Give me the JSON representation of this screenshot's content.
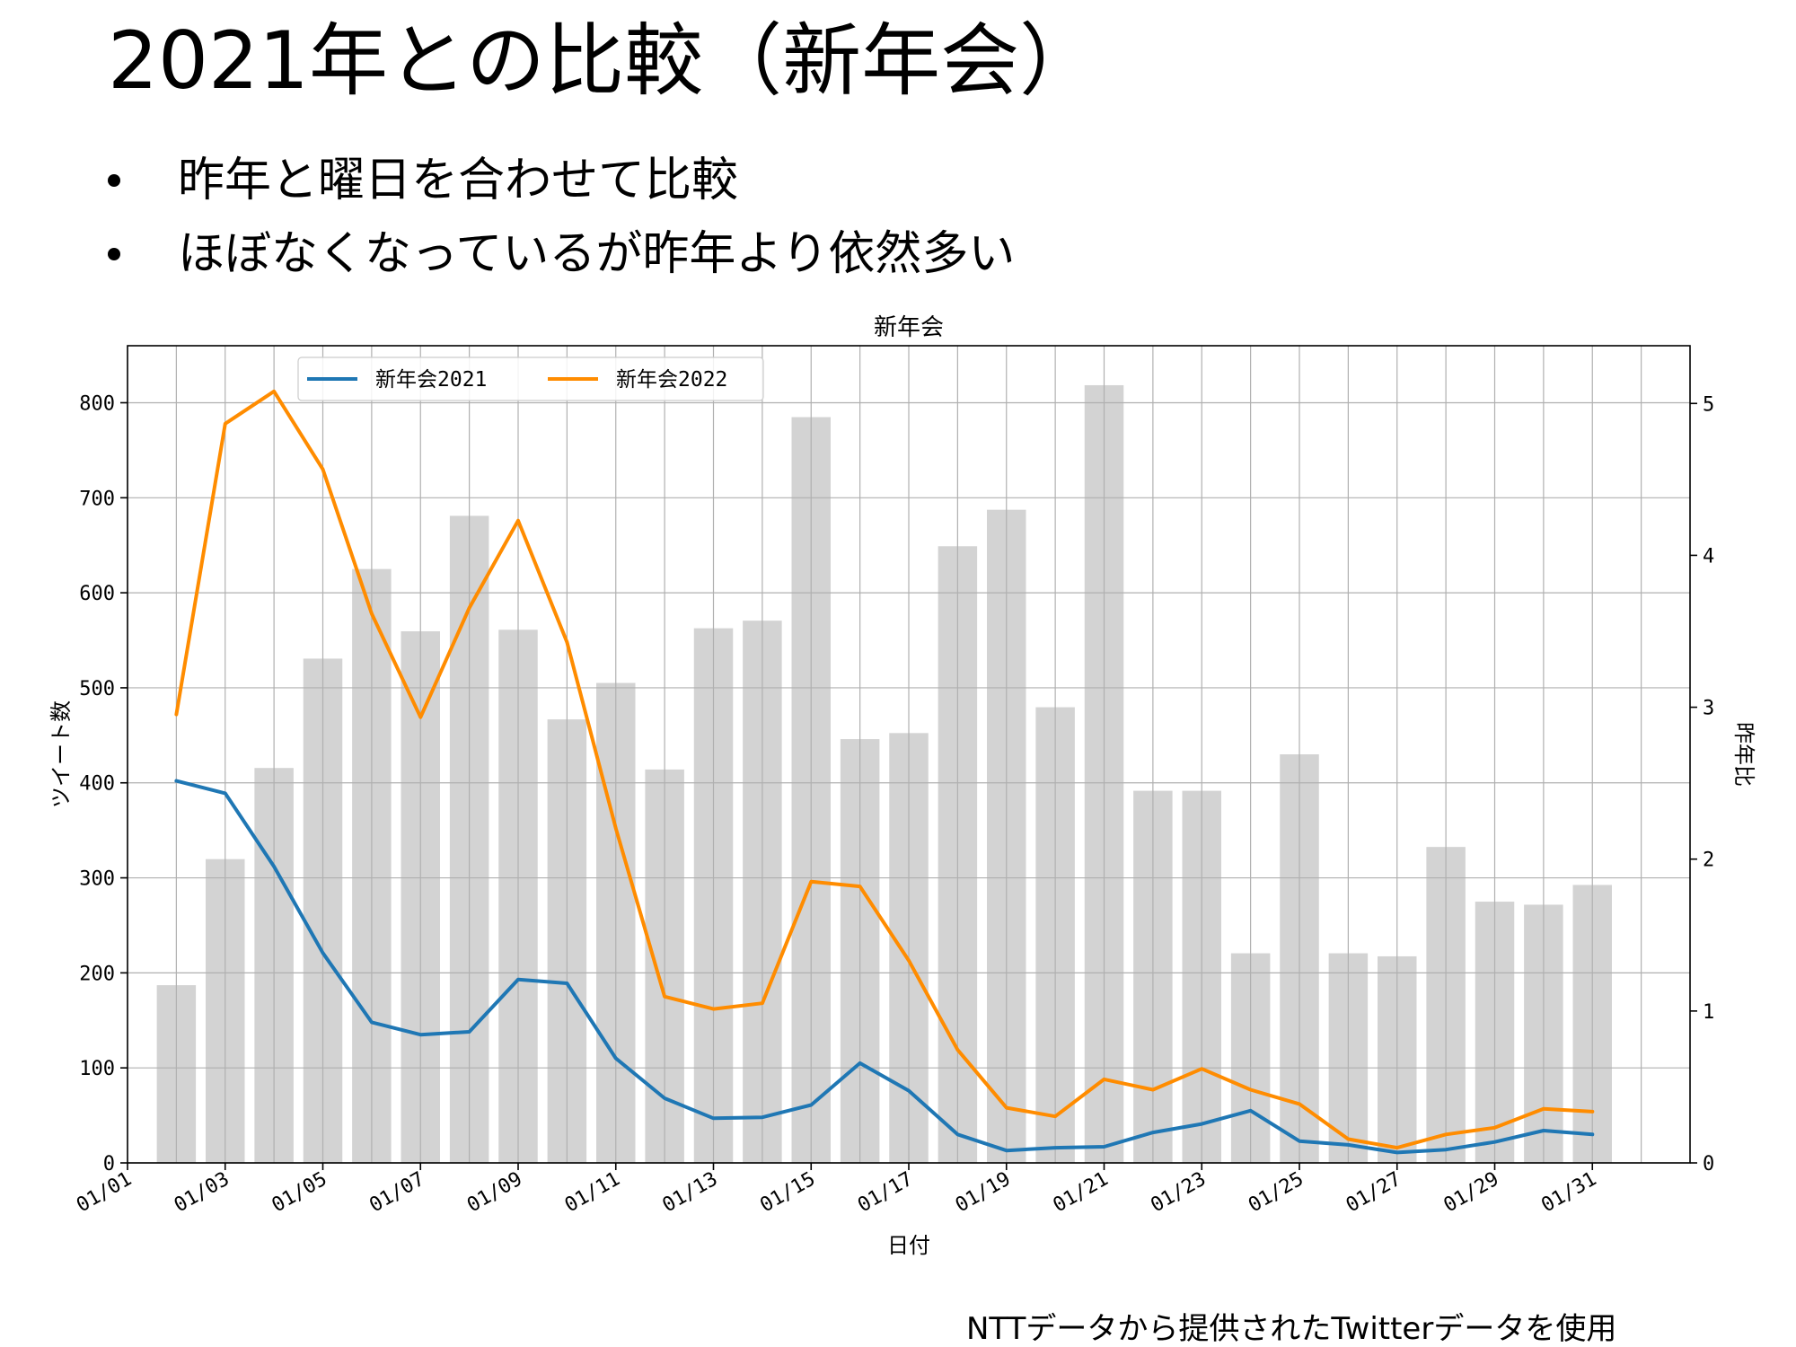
{
  "slide": {
    "title": "2021年との比較（新年会）",
    "bullets": [
      "昨年と曜日を合わせて比較",
      "ほぼなくなっているが昨年より依然多い"
    ],
    "source_note": "NTTデータから提供されたTwitterデータを使用"
  },
  "chart_data": {
    "type": "bar",
    "title": "新年会",
    "xlabel": "日付",
    "ylabel": "ツイート数",
    "y2label": "昨年比",
    "x_range": [
      "01/01",
      "02/02"
    ],
    "ylim": [
      0,
      860
    ],
    "y2lim": [
      0,
      5.38
    ],
    "yticks": [
      0,
      100,
      200,
      300,
      400,
      500,
      600,
      700,
      800
    ],
    "y2ticks": [
      0,
      1,
      2,
      3,
      4,
      5
    ],
    "x_grid_dates": [
      "01/01",
      "01/02",
      "01/03",
      "01/04",
      "01/05",
      "01/06",
      "01/07",
      "01/08",
      "01/09",
      "01/10",
      "01/11",
      "01/12",
      "01/13",
      "01/14",
      "01/15",
      "01/16",
      "01/17",
      "01/18",
      "01/19",
      "01/20",
      "01/21",
      "01/22",
      "01/23",
      "01/24",
      "01/25",
      "01/26",
      "01/27",
      "01/28",
      "01/29",
      "01/30",
      "01/31",
      "02/01"
    ],
    "x_tick_labels": [
      "01/01",
      "01/03",
      "01/05",
      "01/07",
      "01/09",
      "01/11",
      "01/13",
      "01/15",
      "01/17",
      "01/19",
      "01/21",
      "01/23",
      "01/25",
      "01/27",
      "01/29",
      "01/31"
    ],
    "grid": true,
    "legend_position": "top-left",
    "categories": [
      "01/02",
      "01/03",
      "01/04",
      "01/05",
      "01/06",
      "01/07",
      "01/08",
      "01/09",
      "01/10",
      "01/11",
      "01/12",
      "01/13",
      "01/14",
      "01/15",
      "01/16",
      "01/17",
      "01/18",
      "01/19",
      "01/20",
      "01/21",
      "01/22",
      "01/23",
      "01/24",
      "01/25",
      "01/26",
      "01/27",
      "01/28",
      "01/29",
      "01/30",
      "01/31"
    ],
    "bar_values": [
      1.17,
      2.0,
      2.6,
      3.32,
      3.91,
      3.5,
      4.26,
      3.51,
      2.92,
      3.16,
      2.59,
      3.52,
      3.57,
      4.91,
      2.79,
      2.83,
      4.06,
      4.3,
      3.0,
      5.12,
      2.45,
      2.45,
      1.38,
      2.69,
      1.38,
      1.36,
      2.08,
      1.72,
      1.7,
      1.83
    ],
    "bar_axis": "right",
    "bar_color": "#d3d3d3",
    "series": [
      {
        "name": "新年会2021",
        "color": "#1f77b4",
        "axis": "left",
        "values": [
          402,
          389,
          312,
          221,
          148,
          135,
          138,
          193,
          189,
          110,
          68,
          47,
          48,
          61,
          105,
          76,
          30,
          13,
          16,
          17,
          32,
          41,
          55,
          23,
          19,
          11,
          14,
          22,
          34,
          30
        ]
      },
      {
        "name": "新年会2022",
        "color": "#ff8c00",
        "axis": "left",
        "values": [
          472,
          778,
          812,
          730,
          578,
          469,
          584,
          676,
          548,
          352,
          175,
          162,
          168,
          296,
          291,
          213,
          119,
          58,
          49,
          88,
          77,
          99,
          77,
          62,
          25,
          16,
          30,
          37,
          57,
          54
        ]
      }
    ]
  }
}
